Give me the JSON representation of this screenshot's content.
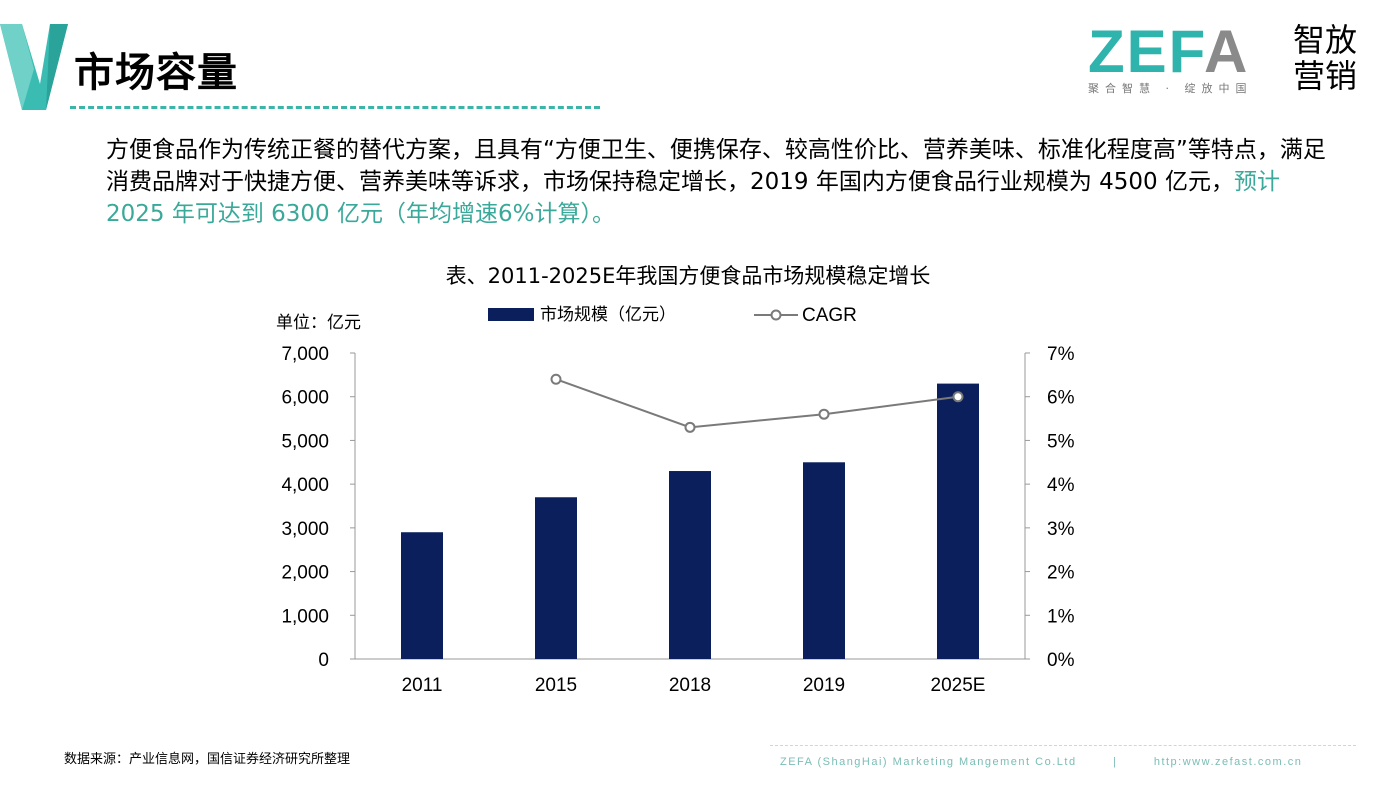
{
  "header": {
    "title": "市场容量",
    "logo_text": "ZEFA",
    "logo_cn": "智放营销",
    "logo_slogan": "聚合智慧 · 绽放中国"
  },
  "paragraph": {
    "text": "方便食品作为传统正餐的替代方案，且具有“方便卫生、便携保存、较高性价比、营养美味、标准化程度高”等特点，满足消费品牌对于快捷方便、营养美味等诉求，市场保持稳定增长，2019 年国内方便食品行业规模为 4500 亿元，",
    "highlight": "预计 2025 年可达到 6300 亿元（年均增速6%计算）。"
  },
  "chart_data": {
    "type": "bar",
    "title": "表、2011-2025E年我国方便食品市场规模稳定增长",
    "unit_label": "单位：亿元",
    "categories": [
      "2011",
      "2015",
      "2018",
      "2019",
      "2025E"
    ],
    "series": [
      {
        "name": "市场规模（亿元）",
        "type": "bar",
        "axis": "left",
        "color": "#0b1f5c",
        "values": [
          2900,
          3700,
          4300,
          4500,
          6300
        ]
      },
      {
        "name": "CAGR",
        "type": "line",
        "axis": "right",
        "color": "#7a7a7a",
        "values": [
          null,
          6.4,
          5.3,
          5.6,
          6.0
        ]
      }
    ],
    "ylim": [
      0,
      7000
    ],
    "yticks": [
      "0",
      "1,000",
      "2,000",
      "3,000",
      "4,000",
      "5,000",
      "6,000",
      "7,000"
    ],
    "y2lim": [
      0,
      7
    ],
    "y2ticks": [
      "0%",
      "1%",
      "2%",
      "3%",
      "4%",
      "5%",
      "6%",
      "7%"
    ],
    "legend_position": "top",
    "grid": false
  },
  "footer": {
    "source": "数据来源：产业信息网，国信证券经济研究所整理",
    "company": "ZEFA (ShangHai) Marketing Mangement Co.Ltd",
    "separator": "|",
    "url": "http:www.zefast.com.cn"
  }
}
